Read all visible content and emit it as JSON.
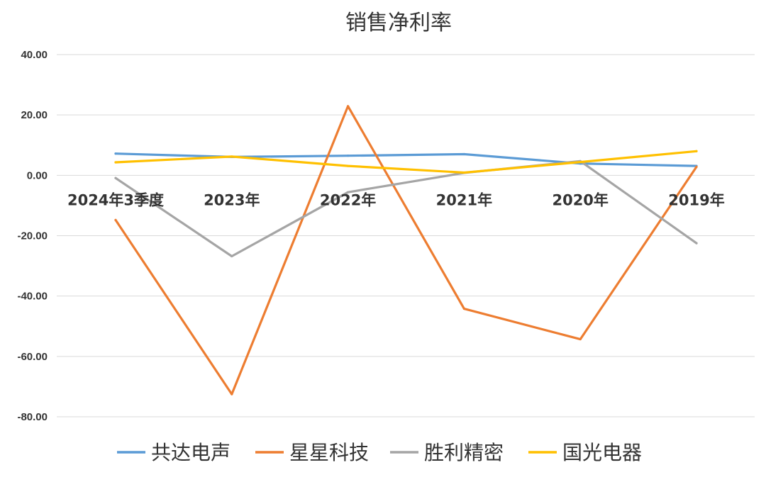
{
  "chart_data": {
    "type": "line",
    "title": "销售净利率",
    "categories": [
      "2024年3季度",
      "2023年",
      "2022年",
      "2021年",
      "2020年",
      "2019年"
    ],
    "ylim": [
      -80,
      40
    ],
    "yticks": [
      "40.00",
      "20.00",
      "0.00",
      "-20.00",
      "-40.00",
      "-60.00",
      "-80.00"
    ],
    "ytick_values": [
      40,
      20,
      0,
      -20,
      -40,
      -60,
      -80
    ],
    "grid": true,
    "legend": "bottom",
    "series": [
      {
        "name": "共达电声",
        "color": "#5b9bd5",
        "values": [
          7.2,
          6.1,
          6.5,
          7.0,
          3.9,
          3.1
        ]
      },
      {
        "name": "星星科技",
        "color": "#ed7d31",
        "values": [
          -14.8,
          -72.5,
          22.9,
          -44.2,
          -54.3,
          2.8
        ]
      },
      {
        "name": "胜利精密",
        "color": "#a5a5a5",
        "values": [
          -0.9,
          -26.8,
          -5.6,
          0.8,
          4.7,
          -22.5
        ]
      },
      {
        "name": "国光电器",
        "color": "#ffc000",
        "values": [
          4.3,
          6.2,
          3.1,
          0.9,
          4.4,
          8.0
        ]
      }
    ]
  }
}
